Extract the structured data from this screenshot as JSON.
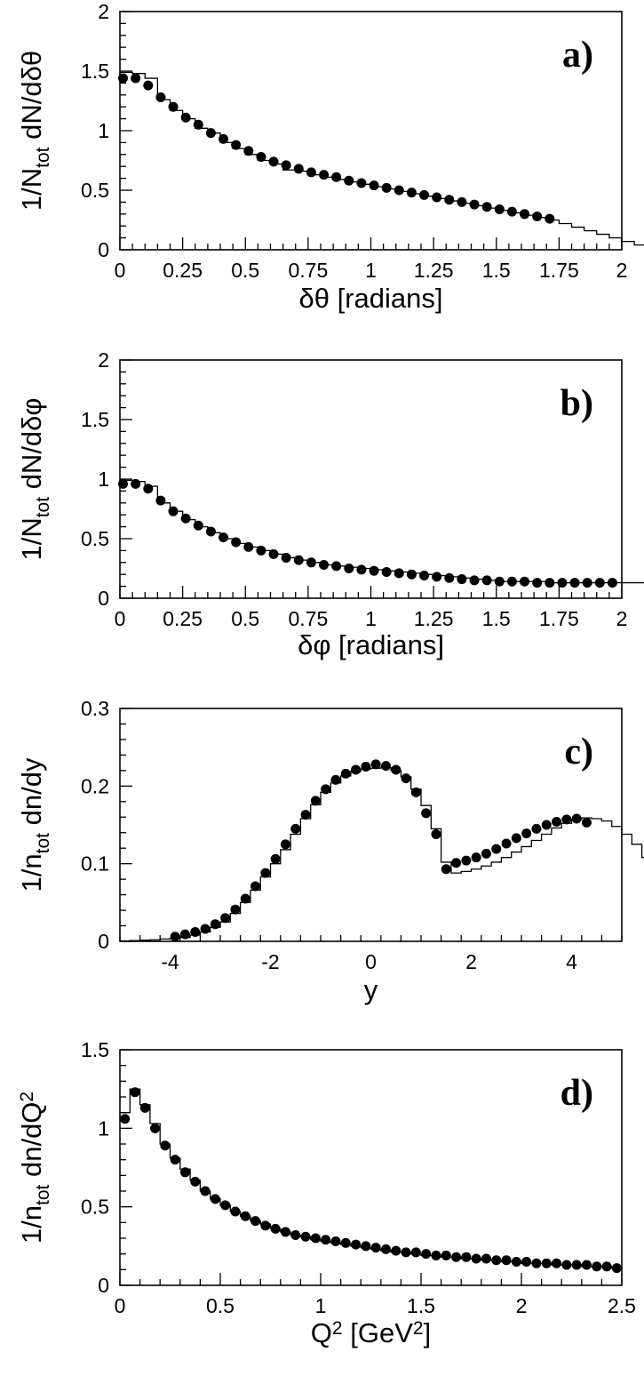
{
  "chart_data": [
    {
      "type": "scatter",
      "panel_label": "a)",
      "ylabel": "1/N<sub>tot</sub> dN/dδθ",
      "xlabel": "δθ [radians]",
      "xlim": [
        0,
        2
      ],
      "ylim": [
        0,
        2
      ],
      "x_ticks": [
        "0",
        "0.25",
        "0.5",
        "0.75",
        "1",
        "1.25",
        "1.5",
        "1.75",
        "2"
      ],
      "y_ticks": [
        "0",
        "0.5",
        "1",
        "1.5",
        "2"
      ],
      "series": [
        {
          "style": "histogram",
          "bin_width": 0.05,
          "values": [
            1.49,
            1.48,
            1.44,
            1.26,
            1.17,
            1.1,
            1.02,
            0.98,
            0.9,
            0.85,
            0.8,
            0.75,
            0.72,
            0.67,
            0.66,
            0.63,
            0.61,
            0.59,
            0.57,
            0.55,
            0.53,
            0.51,
            0.49,
            0.47,
            0.45,
            0.43,
            0.41,
            0.39,
            0.37,
            0.35,
            0.33,
            0.31,
            0.29,
            0.27,
            0.25,
            0.22,
            0.19,
            0.16,
            0.13,
            0.1,
            0.07,
            0.04,
            0.03,
            0.02,
            0.01,
            0.005,
            0.002,
            0.001,
            0.0005,
            0.0002
          ]
        },
        {
          "style": "points",
          "x_start": 0.0125,
          "x_step": 0.05,
          "count": 35,
          "values": [
            1.44,
            1.44,
            1.38,
            1.28,
            1.2,
            1.11,
            1.05,
            0.98,
            0.93,
            0.88,
            0.83,
            0.78,
            0.74,
            0.71,
            0.68,
            0.65,
            0.63,
            0.61,
            0.58,
            0.56,
            0.54,
            0.52,
            0.5,
            0.48,
            0.46,
            0.44,
            0.42,
            0.4,
            0.38,
            0.36,
            0.34,
            0.32,
            0.3,
            0.28,
            0.26
          ]
        }
      ]
    },
    {
      "type": "scatter",
      "panel_label": "b)",
      "ylabel": "1/N<sub>tot</sub> dN/dδφ",
      "xlabel": "δφ [radians]",
      "xlim": [
        0,
        2
      ],
      "ylim": [
        0,
        2
      ],
      "x_ticks": [
        "0",
        "0.25",
        "0.5",
        "0.75",
        "1",
        "1.25",
        "1.5",
        "1.75",
        "2"
      ],
      "y_ticks": [
        "0",
        "0.5",
        "1",
        "1.5",
        "2"
      ],
      "series": [
        {
          "style": "histogram",
          "bin_width": 0.05,
          "values": [
            0.99,
            0.98,
            0.94,
            0.8,
            0.73,
            0.66,
            0.6,
            0.55,
            0.5,
            0.46,
            0.43,
            0.4,
            0.37,
            0.34,
            0.32,
            0.3,
            0.28,
            0.27,
            0.26,
            0.25,
            0.24,
            0.23,
            0.22,
            0.21,
            0.2,
            0.19,
            0.18,
            0.17,
            0.16,
            0.15,
            0.14,
            0.14,
            0.14,
            0.14,
            0.13,
            0.13,
            0.13,
            0.13,
            0.13,
            0.13,
            0.13,
            0.13,
            0.13,
            0.12,
            0.12,
            0.12,
            0.12,
            0.12,
            0.12,
            0.12
          ]
        },
        {
          "style": "points",
          "x_start": 0.0125,
          "x_step": 0.05,
          "count": 40,
          "values": [
            0.96,
            0.96,
            0.92,
            0.82,
            0.73,
            0.67,
            0.61,
            0.56,
            0.51,
            0.47,
            0.43,
            0.4,
            0.37,
            0.34,
            0.32,
            0.3,
            0.28,
            0.27,
            0.25,
            0.24,
            0.23,
            0.22,
            0.21,
            0.2,
            0.19,
            0.18,
            0.17,
            0.16,
            0.15,
            0.15,
            0.14,
            0.14,
            0.14,
            0.13,
            0.13,
            0.13,
            0.13,
            0.13,
            0.13,
            0.13
          ]
        }
      ]
    },
    {
      "type": "scatter",
      "panel_label": "c)",
      "ylabel": "1/n<sub>tot</sub> dn/dy",
      "xlabel": "y",
      "xlim": [
        -5,
        5
      ],
      "ylim": [
        0,
        0.3
      ],
      "x_ticks": [
        "-4",
        "-2",
        "0",
        "2",
        "4"
      ],
      "x_tick_values": [
        -4,
        -2,
        0,
        2,
        4
      ],
      "y_ticks": [
        "0",
        "0.1",
        "0.2",
        "0.3"
      ],
      "series": [
        {
          "style": "histogram",
          "x_start": -5.0,
          "bin_width": 0.2,
          "values": [
            0.0005,
            0.001,
            0.0015,
            0.002,
            0.003,
            0.004,
            0.005,
            0.008,
            0.012,
            0.018,
            0.025,
            0.036,
            0.05,
            0.066,
            0.083,
            0.1,
            0.118,
            0.138,
            0.158,
            0.176,
            0.192,
            0.204,
            0.213,
            0.219,
            0.222,
            0.223,
            0.224,
            0.22,
            0.212,
            0.196,
            0.175,
            0.145,
            0.102,
            0.088,
            0.09,
            0.093,
            0.097,
            0.102,
            0.108,
            0.115,
            0.122,
            0.13,
            0.138,
            0.146,
            0.152,
            0.157,
            0.159,
            0.158,
            0.155,
            0.148,
            0.138,
            0.125,
            0.108,
            0.09,
            0.073,
            0.057,
            0.043,
            0.031,
            0.022,
            0.016,
            0.011,
            0.008,
            0.006,
            0.004,
            0.003,
            0.002,
            0.001,
            0.0005,
            0.0003,
            0.0002,
            0.0001,
            5e-05
          ]
        },
        {
          "style": "points",
          "x_start": -3.9,
          "x_step": 0.2,
          "count": 42,
          "values": [
            0.006,
            0.009,
            0.012,
            0.016,
            0.022,
            0.03,
            0.041,
            0.055,
            0.071,
            0.088,
            0.106,
            0.125,
            0.145,
            0.163,
            0.181,
            0.196,
            0.208,
            0.216,
            0.221,
            0.225,
            0.228,
            0.226,
            0.221,
            0.21,
            0.192,
            0.165,
            0.138,
            0.093,
            0.101,
            0.104,
            0.108,
            0.113,
            0.119,
            0.126,
            0.133,
            0.139,
            0.145,
            0.15,
            0.154,
            0.157,
            0.158,
            0.153
          ]
        }
      ]
    },
    {
      "type": "scatter",
      "panel_label": "d)",
      "ylabel": "1/n<sub>tot</sub> dn/dQ<sup>2</sup>",
      "xlabel": "Q<sup>2</sup> [GeV<sup>2</sup>]",
      "xlim": [
        0,
        2.5
      ],
      "ylim": [
        0,
        1.5
      ],
      "x_ticks": [
        "0",
        "0.5",
        "1",
        "1.5",
        "2",
        "2.5"
      ],
      "y_ticks": [
        "0",
        "0.5",
        "1",
        "1.5"
      ],
      "series": [
        {
          "style": "histogram",
          "bin_width": 0.05,
          "values": [
            1.1,
            1.25,
            1.15,
            1.03,
            0.9,
            0.81,
            0.74,
            0.67,
            0.6,
            0.55,
            0.51,
            0.47,
            0.44,
            0.41,
            0.39,
            0.36,
            0.34,
            0.32,
            0.31,
            0.29,
            0.28,
            0.27,
            0.26,
            0.25,
            0.24,
            0.23,
            0.22,
            0.21,
            0.21,
            0.2,
            0.19,
            0.19,
            0.18,
            0.18,
            0.17,
            0.17,
            0.16,
            0.16,
            0.15,
            0.15,
            0.14,
            0.14,
            0.14,
            0.13,
            0.13,
            0.13,
            0.12,
            0.12,
            0.12,
            0.11
          ]
        },
        {
          "style": "points",
          "x_start": 0.025,
          "x_step": 0.05,
          "count": 50,
          "values": [
            1.06,
            1.23,
            1.13,
            1.0,
            0.89,
            0.8,
            0.72,
            0.66,
            0.6,
            0.55,
            0.51,
            0.47,
            0.44,
            0.41,
            0.38,
            0.36,
            0.34,
            0.32,
            0.31,
            0.3,
            0.29,
            0.28,
            0.27,
            0.26,
            0.25,
            0.24,
            0.23,
            0.22,
            0.21,
            0.21,
            0.2,
            0.19,
            0.19,
            0.18,
            0.18,
            0.17,
            0.17,
            0.16,
            0.16,
            0.15,
            0.15,
            0.14,
            0.14,
            0.14,
            0.13,
            0.13,
            0.13,
            0.12,
            0.12,
            0.11
          ]
        }
      ]
    }
  ]
}
